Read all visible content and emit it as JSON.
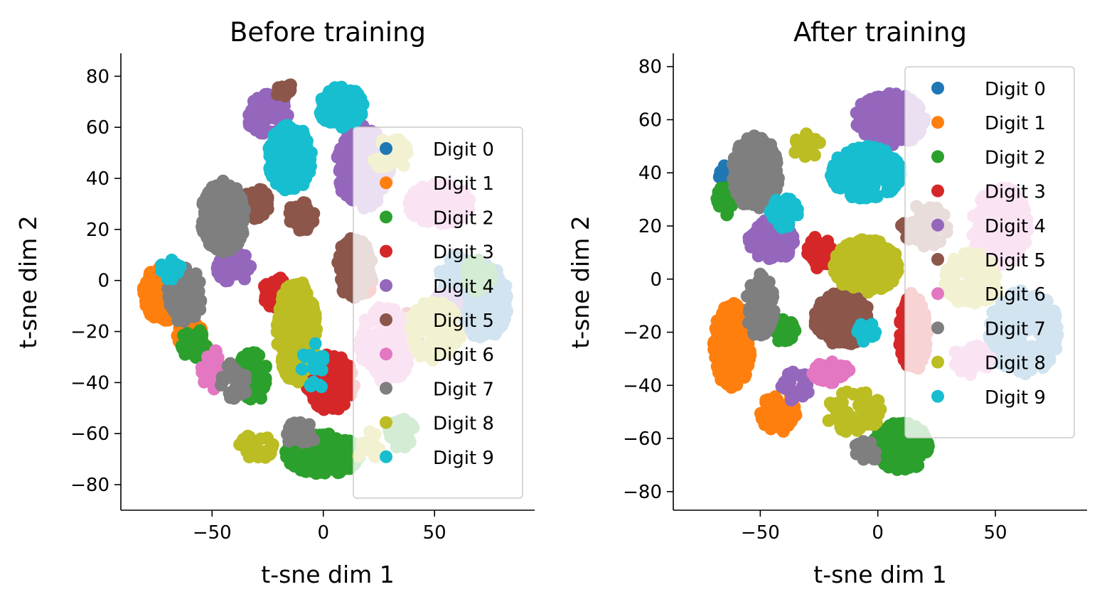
{
  "figure": {
    "background": "#ffffff"
  },
  "chart_data": [
    {
      "type": "scatter",
      "title": "Before training",
      "xlabel": "t-sne dim 1",
      "ylabel": "t-sne dim 2",
      "xlim": [
        -91,
        95
      ],
      "ylim": [
        -90,
        89
      ],
      "xticks": [
        -50,
        0,
        50
      ],
      "yticks": [
        -80,
        -60,
        -40,
        -20,
        0,
        20,
        40,
        60,
        80
      ],
      "grid": false,
      "legend_position": "right",
      "series": [
        {
          "name": "Digit 0",
          "color": "#1f77b4",
          "clusters": [
            [
              72,
              -8,
              11,
              15,
              200
            ],
            [
              60,
              2,
              8,
              8,
              80
            ]
          ]
        },
        {
          "name": "Digit 1",
          "color": "#ff7f0e",
          "clusters": [
            [
              -72,
              -5,
              9,
              11,
              240
            ],
            [
              -60,
              -22,
              6,
              6,
              60
            ]
          ]
        },
        {
          "name": "Digit 2",
          "color": "#2ca02c",
          "clusters": [
            [
              0,
              -68,
              17,
              8,
              280
            ],
            [
              -32,
              -38,
              7,
              10,
              60
            ],
            [
              -58,
              -25,
              6,
              6,
              40
            ],
            [
              35,
              -60,
              6,
              6,
              30
            ],
            [
              70,
              2,
              6,
              7,
              40
            ]
          ]
        },
        {
          "name": "Digit 3",
          "color": "#d62728",
          "clusters": [
            [
              3,
              -40,
              11,
              11,
              160
            ],
            [
              -20,
              -5,
              8,
              6,
              50
            ],
            [
              15,
              0,
              8,
              6,
              40
            ],
            [
              40,
              -20,
              6,
              8,
              30
            ]
          ]
        },
        {
          "name": "Digit 4",
          "color": "#9467bd",
          "clusters": [
            [
              18,
              45,
              12,
              17,
              220
            ],
            [
              -25,
              65,
              10,
              8,
              100
            ],
            [
              -40,
              5,
              8,
              6,
              50
            ],
            [
              55,
              -10,
              6,
              6,
              30
            ]
          ]
        },
        {
          "name": "Digit 5",
          "color": "#8c564b",
          "clusters": [
            [
              14,
              5,
              8,
              12,
              160
            ],
            [
              -10,
              25,
              6,
              6,
              40
            ],
            [
              -30,
              30,
              6,
              6,
              40
            ],
            [
              -18,
              75,
              4,
              3,
              20
            ]
          ]
        },
        {
          "name": "Digit 6",
          "color": "#e377c2",
          "clusters": [
            [
              52,
              30,
              14,
              8,
              200
            ],
            [
              28,
              -25,
              12,
              15,
              200
            ],
            [
              -50,
              -35,
              6,
              8,
              40
            ]
          ]
        },
        {
          "name": "Digit 7",
          "color": "#7f7f7f",
          "clusters": [
            [
              -45,
              25,
              10,
              14,
              280
            ],
            [
              -62,
              -5,
              8,
              12,
              80
            ],
            [
              -40,
              -40,
              6,
              8,
              30
            ],
            [
              -10,
              -60,
              7,
              5,
              30
            ]
          ]
        },
        {
          "name": "Digit 8",
          "color": "#bcbd22",
          "clusters": [
            [
              -12,
              -20,
              9,
              20,
              300
            ],
            [
              50,
              -20,
              12,
              12,
              100
            ],
            [
              -30,
              -65,
              8,
              5,
              30
            ],
            [
              30,
              50,
              8,
              8,
              30
            ],
            [
              20,
              -65,
              6,
              6,
              20
            ]
          ]
        },
        {
          "name": "Digit 9",
          "color": "#17becf",
          "clusters": [
            [
              -15,
              48,
              10,
              13,
              220
            ],
            [
              8,
              68,
              10,
              8,
              160
            ],
            [
              -68,
              5,
              5,
              5,
              20
            ],
            [
              -5,
              -35,
              6,
              12,
              20
            ]
          ]
        }
      ]
    },
    {
      "type": "scatter",
      "title": "After training",
      "xlabel": "t-sne dim 1",
      "ylabel": "t-sne dim 2",
      "xlim": [
        -87,
        89
      ],
      "ylim": [
        -87,
        85
      ],
      "xticks": [
        -50,
        0,
        50
      ],
      "yticks": [
        -80,
        -60,
        -40,
        -20,
        0,
        20,
        40,
        60,
        80
      ],
      "grid": false,
      "legend_position": "upper right",
      "series": [
        {
          "name": "Digit 0",
          "color": "#1f77b4",
          "clusters": [
            [
              62,
              -20,
              15,
              16,
              220
            ],
            [
              -65,
              40,
              3,
              3,
              10
            ]
          ]
        },
        {
          "name": "Digit 1",
          "color": "#ff7f0e",
          "clusters": [
            [
              -62,
              -25,
              8,
              16,
              260
            ],
            [
              -42,
              -50,
              8,
              8,
              60
            ]
          ]
        },
        {
          "name": "Digit 2",
          "color": "#2ca02c",
          "clusters": [
            [
              10,
              -63,
              12,
              9,
              260
            ],
            [
              -40,
              -20,
              5,
              5,
              30
            ],
            [
              -65,
              30,
              4,
              6,
              30
            ]
          ]
        },
        {
          "name": "Digit 3",
          "color": "#d62728",
          "clusters": [
            [
              15,
              -20,
              6,
              15,
              160
            ],
            [
              -25,
              10,
              6,
              6,
              30
            ]
          ]
        },
        {
          "name": "Digit 4",
          "color": "#9467bd",
          "clusters": [
            [
              -45,
              15,
              10,
              8,
              100
            ],
            [
              5,
              60,
              15,
              10,
              160
            ],
            [
              -35,
              -40,
              6,
              6,
              30
            ]
          ]
        },
        {
          "name": "Digit 5",
          "color": "#8c564b",
          "clusters": [
            [
              -15,
              -15,
              12,
              10,
              220
            ],
            [
              20,
              20,
              10,
              8,
              60
            ]
          ]
        },
        {
          "name": "Digit 6",
          "color": "#e377c2",
          "clusters": [
            [
              -20,
              -35,
              8,
              4,
              60
            ],
            [
              52,
              20,
              12,
              15,
              200
            ],
            [
              40,
              -30,
              8,
              6,
              40
            ]
          ]
        },
        {
          "name": "Digit 7",
          "color": "#7f7f7f",
          "clusters": [
            [
              -52,
              40,
              10,
              14,
              260
            ],
            [
              -50,
              -10,
              6,
              12,
              60
            ],
            [
              -5,
              -65,
              5,
              5,
              20
            ]
          ]
        },
        {
          "name": "Digit 8",
          "color": "#bcbd22",
          "clusters": [
            [
              -5,
              5,
              14,
              10,
              260
            ],
            [
              40,
              0,
              12,
              10,
              100
            ],
            [
              -10,
              -50,
              12,
              8,
              60
            ],
            [
              -30,
              50,
              6,
              6,
              20
            ]
          ]
        },
        {
          "name": "Digit 9",
          "color": "#17becf",
          "clusters": [
            [
              -5,
              40,
              15,
              10,
              240
            ],
            [
              -40,
              25,
              6,
              6,
              40
            ],
            [
              -5,
              -20,
              4,
              4,
              15
            ]
          ]
        }
      ]
    }
  ]
}
